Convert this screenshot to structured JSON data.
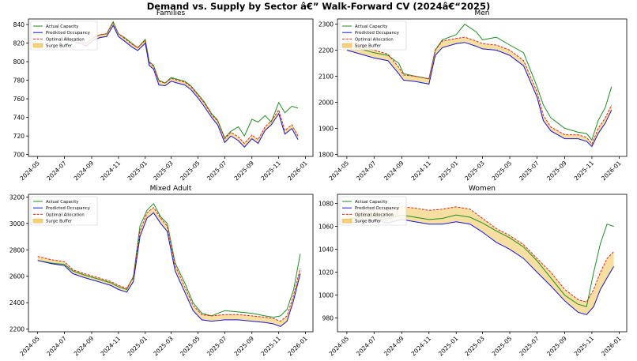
{
  "suptitle": "Demand vs. Supply by Sector â€” Walk-Forward CV (2024â€“2025)",
  "legend_labels": [
    "Actual Capacity",
    "Predicted Occupancy",
    "Optimal Allocation",
    "Surge Buffer"
  ],
  "colors": {
    "actual": "#1f8f1f",
    "predicted": "#1515d8",
    "optimal": "#e0261a",
    "buffer": "#f3d27a"
  },
  "x_ticks": [
    "2024-05",
    "2024-07",
    "2024-09",
    "2024-11",
    "2025-01",
    "2025-03",
    "2025-05",
    "2025-07",
    "2025-09",
    "2025-11",
    "2026-01"
  ],
  "chart_data": [
    {
      "type": "line",
      "title": "Families",
      "legend_position": "upper-left",
      "grid": false,
      "xlim": [
        "2024-04-10",
        "2026-01-18"
      ],
      "ylim": [
        698,
        846
      ],
      "yticks": [
        700,
        720,
        740,
        760,
        780,
        800,
        820,
        840
      ],
      "series": [
        {
          "name": "Actual Capacity",
          "role": "actual",
          "x": [
            "2024-07-01",
            "2024-07-20",
            "2024-08-05",
            "2024-08-20",
            "2024-09-05",
            "2024-09-20",
            "2024-10-05",
            "2024-10-20",
            "2024-11-01",
            "2024-11-15",
            "2024-12-01",
            "2024-12-15",
            "2025-01-01",
            "2025-01-10",
            "2025-01-20",
            "2025-02-01",
            "2025-02-15",
            "2025-03-01",
            "2025-03-15",
            "2025-04-01",
            "2025-04-15",
            "2025-05-01",
            "2025-05-15",
            "2025-06-01",
            "2025-06-15",
            "2025-07-01",
            "2025-07-15",
            "2025-08-01",
            "2025-08-15",
            "2025-09-01",
            "2025-09-15",
            "2025-10-01",
            "2025-10-15",
            "2025-11-01",
            "2025-11-15",
            "2025-12-01",
            "2025-12-15"
          ],
          "y": [
            826,
            824,
            822,
            820,
            826,
            829,
            830,
            843,
            830,
            826,
            820,
            815,
            824,
            800,
            796,
            780,
            777,
            783,
            781,
            779,
            774,
            765,
            757,
            744,
            737,
            718,
            725,
            730,
            720,
            738,
            735,
            742,
            735,
            756,
            745,
            752,
            750
          ]
        },
        {
          "name": "Predicted Occupancy",
          "role": "predicted",
          "x": [
            "2024-07-01",
            "2024-07-20",
            "2024-08-05",
            "2024-08-20",
            "2024-09-05",
            "2024-09-20",
            "2024-10-05",
            "2024-10-20",
            "2024-11-01",
            "2024-11-15",
            "2024-12-01",
            "2024-12-15",
            "2025-01-01",
            "2025-01-10",
            "2025-01-20",
            "2025-02-01",
            "2025-02-15",
            "2025-03-01",
            "2025-03-15",
            "2025-04-01",
            "2025-04-15",
            "2025-05-01",
            "2025-05-15",
            "2025-06-01",
            "2025-06-15",
            "2025-07-01",
            "2025-07-15",
            "2025-08-01",
            "2025-08-15",
            "2025-09-01",
            "2025-09-15",
            "2025-10-01",
            "2025-10-15",
            "2025-11-01",
            "2025-11-15",
            "2025-12-01",
            "2025-12-15"
          ],
          "y": [
            824,
            822,
            820,
            817,
            823,
            826,
            827,
            839,
            827,
            822,
            816,
            812,
            820,
            796,
            792,
            775,
            774,
            779,
            777,
            775,
            770,
            761,
            752,
            740,
            732,
            713,
            720,
            715,
            708,
            717,
            712,
            726,
            732,
            744,
            722,
            728,
            716
          ]
        },
        {
          "name": "Optimal Allocation",
          "role": "optimal",
          "x": [
            "2024-07-01",
            "2024-07-20",
            "2024-08-05",
            "2024-08-20",
            "2024-09-05",
            "2024-09-20",
            "2024-10-05",
            "2024-10-20",
            "2024-11-01",
            "2024-11-15",
            "2024-12-01",
            "2024-12-15",
            "2025-01-01",
            "2025-01-10",
            "2025-01-20",
            "2025-02-01",
            "2025-02-15",
            "2025-03-01",
            "2025-03-15",
            "2025-04-01",
            "2025-04-15",
            "2025-05-01",
            "2025-05-15",
            "2025-06-01",
            "2025-06-15",
            "2025-07-01",
            "2025-07-15",
            "2025-08-01",
            "2025-08-15",
            "2025-09-01",
            "2025-09-15",
            "2025-10-01",
            "2025-10-15",
            "2025-11-01",
            "2025-11-15",
            "2025-12-01",
            "2025-12-15"
          ],
          "y": [
            826,
            824,
            822,
            820,
            826,
            829,
            830,
            842,
            830,
            825,
            819,
            815,
            823,
            799,
            795,
            779,
            777,
            782,
            780,
            778,
            773,
            764,
            756,
            743,
            736,
            717,
            724,
            719,
            712,
            721,
            716,
            730,
            736,
            748,
            726,
            732,
            720
          ]
        }
      ]
    },
    {
      "type": "line",
      "title": "Men",
      "legend_position": "upper-left",
      "grid": false,
      "xlim": [
        "2024-04-10",
        "2026-01-18"
      ],
      "ylim": [
        1792,
        2320
      ],
      "yticks": [
        1800,
        1900,
        2000,
        2100,
        2200,
        2300
      ],
      "series": [
        {
          "name": "Actual Capacity",
          "role": "actual",
          "x": [
            "2024-05-01",
            "2024-06-01",
            "2024-07-01",
            "2024-08-01",
            "2024-08-25",
            "2024-09-05",
            "2024-10-01",
            "2024-11-01",
            "2024-11-15",
            "2024-12-01",
            "2025-01-01",
            "2025-01-20",
            "2025-02-15",
            "2025-03-01",
            "2025-04-01",
            "2025-05-01",
            "2025-06-01",
            "2025-07-01",
            "2025-07-15",
            "2025-08-01",
            "2025-09-01",
            "2025-10-01",
            "2025-10-20",
            "2025-11-01",
            "2025-11-15",
            "2025-12-01",
            "2025-12-15"
          ],
          "y": [
            2225,
            2205,
            2190,
            2180,
            2150,
            2110,
            2100,
            2090,
            2200,
            2240,
            2260,
            2300,
            2270,
            2240,
            2250,
            2220,
            2190,
            2060,
            1990,
            1940,
            1900,
            1885,
            1880,
            1855,
            1930,
            1980,
            2060
          ]
        },
        {
          "name": "Predicted Occupancy",
          "role": "predicted",
          "x": [
            "2024-05-01",
            "2024-06-01",
            "2024-07-01",
            "2024-08-01",
            "2024-08-25",
            "2024-09-05",
            "2024-10-01",
            "2024-11-01",
            "2024-11-15",
            "2024-12-01",
            "2025-01-01",
            "2025-01-20",
            "2025-02-15",
            "2025-03-01",
            "2025-04-01",
            "2025-05-01",
            "2025-06-01",
            "2025-07-01",
            "2025-07-15",
            "2025-08-01",
            "2025-09-01",
            "2025-10-01",
            "2025-10-20",
            "2025-11-01",
            "2025-11-15",
            "2025-12-01",
            "2025-12-15"
          ],
          "y": [
            2200,
            2185,
            2170,
            2160,
            2110,
            2085,
            2080,
            2070,
            2180,
            2210,
            2225,
            2230,
            2215,
            2205,
            2200,
            2180,
            2140,
            2020,
            1930,
            1890,
            1860,
            1860,
            1850,
            1830,
            1880,
            1920,
            1970
          ]
        },
        {
          "name": "Optimal Allocation",
          "role": "optimal",
          "x": [
            "2024-05-01",
            "2024-06-01",
            "2024-07-01",
            "2024-08-01",
            "2024-08-25",
            "2024-09-05",
            "2024-10-01",
            "2024-11-01",
            "2024-11-15",
            "2024-12-01",
            "2025-01-01",
            "2025-01-20",
            "2025-02-15",
            "2025-03-01",
            "2025-04-01",
            "2025-05-01",
            "2025-06-01",
            "2025-07-01",
            "2025-07-15",
            "2025-08-01",
            "2025-09-01",
            "2025-10-01",
            "2025-10-20",
            "2025-11-01",
            "2025-11-15",
            "2025-12-01",
            "2025-12-15"
          ],
          "y": [
            2235,
            2220,
            2200,
            2185,
            2135,
            2105,
            2100,
            2090,
            2200,
            2235,
            2245,
            2250,
            2235,
            2225,
            2220,
            2200,
            2160,
            2040,
            1950,
            1905,
            1875,
            1875,
            1865,
            1840,
            1900,
            1940,
            1990
          ]
        }
      ]
    },
    {
      "type": "line",
      "title": "Mixed Adult",
      "legend_position": "upper-left",
      "grid": false,
      "xlim": [
        "2024-04-10",
        "2026-01-18"
      ],
      "ylim": [
        2180,
        3220
      ],
      "yticks": [
        2200,
        2400,
        2600,
        2800,
        3000,
        3200
      ],
      "series": [
        {
          "name": "Actual Capacity",
          "role": "actual",
          "x": [
            "2024-05-01",
            "2024-06-01",
            "2024-07-01",
            "2024-07-20",
            "2024-08-15",
            "2024-09-15",
            "2024-10-15",
            "2024-11-01",
            "2024-11-20",
            "2024-12-05",
            "2024-12-20",
            "2025-01-05",
            "2025-01-20",
            "2025-02-05",
            "2025-02-20",
            "2025-03-10",
            "2025-04-01",
            "2025-04-20",
            "2025-05-10",
            "2025-06-01",
            "2025-07-01",
            "2025-08-01",
            "2025-09-01",
            "2025-10-01",
            "2025-10-20",
            "2025-11-05",
            "2025-11-20",
            "2025-12-05",
            "2025-12-20"
          ],
          "y": [
            2720,
            2700,
            2690,
            2640,
            2610,
            2580,
            2550,
            2520,
            2500,
            2600,
            2980,
            3100,
            3150,
            3050,
            3000,
            2700,
            2550,
            2400,
            2320,
            2300,
            2340,
            2330,
            2320,
            2300,
            2290,
            2300,
            2350,
            2500,
            2770
          ]
        },
        {
          "name": "Predicted Occupancy",
          "role": "predicted",
          "x": [
            "2024-05-01",
            "2024-06-01",
            "2024-07-01",
            "2024-07-20",
            "2024-08-15",
            "2024-09-15",
            "2024-10-15",
            "2024-11-01",
            "2024-11-20",
            "2024-12-05",
            "2024-12-20",
            "2025-01-05",
            "2025-01-20",
            "2025-02-05",
            "2025-02-20",
            "2025-03-10",
            "2025-04-01",
            "2025-04-20",
            "2025-05-10",
            "2025-06-01",
            "2025-07-01",
            "2025-08-01",
            "2025-09-01",
            "2025-10-01",
            "2025-10-20",
            "2025-11-05",
            "2025-11-20",
            "2025-12-05",
            "2025-12-20"
          ],
          "y": [
            2720,
            2695,
            2680,
            2620,
            2590,
            2560,
            2530,
            2500,
            2480,
            2560,
            2900,
            3040,
            3080,
            3000,
            2940,
            2640,
            2480,
            2340,
            2270,
            2260,
            2270,
            2270,
            2260,
            2250,
            2240,
            2220,
            2260,
            2420,
            2620
          ]
        },
        {
          "name": "Optimal Allocation",
          "role": "optimal",
          "x": [
            "2024-05-01",
            "2024-06-01",
            "2024-07-01",
            "2024-07-20",
            "2024-08-15",
            "2024-09-15",
            "2024-10-15",
            "2024-11-01",
            "2024-11-20",
            "2024-12-05",
            "2024-12-20",
            "2025-01-05",
            "2025-01-20",
            "2025-02-05",
            "2025-02-20",
            "2025-03-10",
            "2025-04-01",
            "2025-04-20",
            "2025-05-10",
            "2025-06-01",
            "2025-07-01",
            "2025-08-01",
            "2025-09-01",
            "2025-10-01",
            "2025-10-20",
            "2025-11-05",
            "2025-11-20",
            "2025-12-05",
            "2025-12-20"
          ],
          "y": [
            2750,
            2725,
            2710,
            2650,
            2620,
            2590,
            2560,
            2530,
            2510,
            2590,
            2940,
            3080,
            3120,
            3040,
            2980,
            2680,
            2520,
            2380,
            2310,
            2300,
            2310,
            2310,
            2300,
            2290,
            2280,
            2260,
            2300,
            2460,
            2660
          ]
        }
      ]
    },
    {
      "type": "line",
      "title": "Women",
      "legend_position": "upper-left",
      "grid": false,
      "xlim": [
        "2024-04-10",
        "2026-01-18"
      ],
      "ylim": [
        968,
        1088
      ],
      "yticks": [
        980,
        1000,
        1020,
        1040,
        1060,
        1080
      ],
      "series": [
        {
          "name": "Actual Capacity",
          "role": "actual",
          "x": [
            "2024-05-01",
            "2024-06-01",
            "2024-07-01",
            "2024-08-01",
            "2024-09-01",
            "2024-10-01",
            "2024-11-01",
            "2024-12-01",
            "2025-01-01",
            "2025-02-01",
            "2025-03-01",
            "2025-04-01",
            "2025-05-01",
            "2025-06-01",
            "2025-07-01",
            "2025-08-01",
            "2025-09-01",
            "2025-10-01",
            "2025-10-20",
            "2025-11-05",
            "2025-11-20",
            "2025-12-05",
            "2025-12-20"
          ],
          "y": [
            1066,
            1068,
            1069,
            1067,
            1070,
            1068,
            1066,
            1067,
            1070,
            1068,
            1063,
            1056,
            1050,
            1042,
            1030,
            1015,
            1000,
            992,
            990,
            1020,
            1045,
            1062,
            1060
          ]
        },
        {
          "name": "Predicted Occupancy",
          "role": "predicted",
          "x": [
            "2024-05-01",
            "2024-06-01",
            "2024-07-01",
            "2024-08-01",
            "2024-09-01",
            "2024-10-01",
            "2024-11-01",
            "2024-12-01",
            "2025-01-01",
            "2025-02-01",
            "2025-03-01",
            "2025-04-01",
            "2025-05-01",
            "2025-06-01",
            "2025-07-01",
            "2025-08-01",
            "2025-09-01",
            "2025-10-01",
            "2025-10-20",
            "2025-11-05",
            "2025-11-20",
            "2025-12-05",
            "2025-12-20"
          ],
          "y": [
            1063,
            1064,
            1065,
            1063,
            1066,
            1064,
            1062,
            1062,
            1064,
            1062,
            1055,
            1046,
            1040,
            1032,
            1020,
            1008,
            995,
            985,
            983,
            990,
            1005,
            1015,
            1025
          ]
        },
        {
          "name": "Optimal Allocation",
          "role": "optimal",
          "x": [
            "2024-05-01",
            "2024-06-01",
            "2024-07-01",
            "2024-08-01",
            "2024-09-01",
            "2024-10-01",
            "2024-11-01",
            "2024-12-01",
            "2025-01-01",
            "2025-02-01",
            "2025-03-01",
            "2025-04-01",
            "2025-05-01",
            "2025-06-01",
            "2025-07-01",
            "2025-08-01",
            "2025-09-01",
            "2025-10-01",
            "2025-10-20",
            "2025-11-05",
            "2025-11-20",
            "2025-12-05",
            "2025-12-20"
          ],
          "y": [
            1070,
            1072,
            1075,
            1074,
            1077,
            1076,
            1074,
            1075,
            1077,
            1075,
            1067,
            1058,
            1052,
            1044,
            1032,
            1020,
            1005,
            996,
            994,
            1005,
            1020,
            1032,
            1038
          ]
        }
      ]
    }
  ]
}
